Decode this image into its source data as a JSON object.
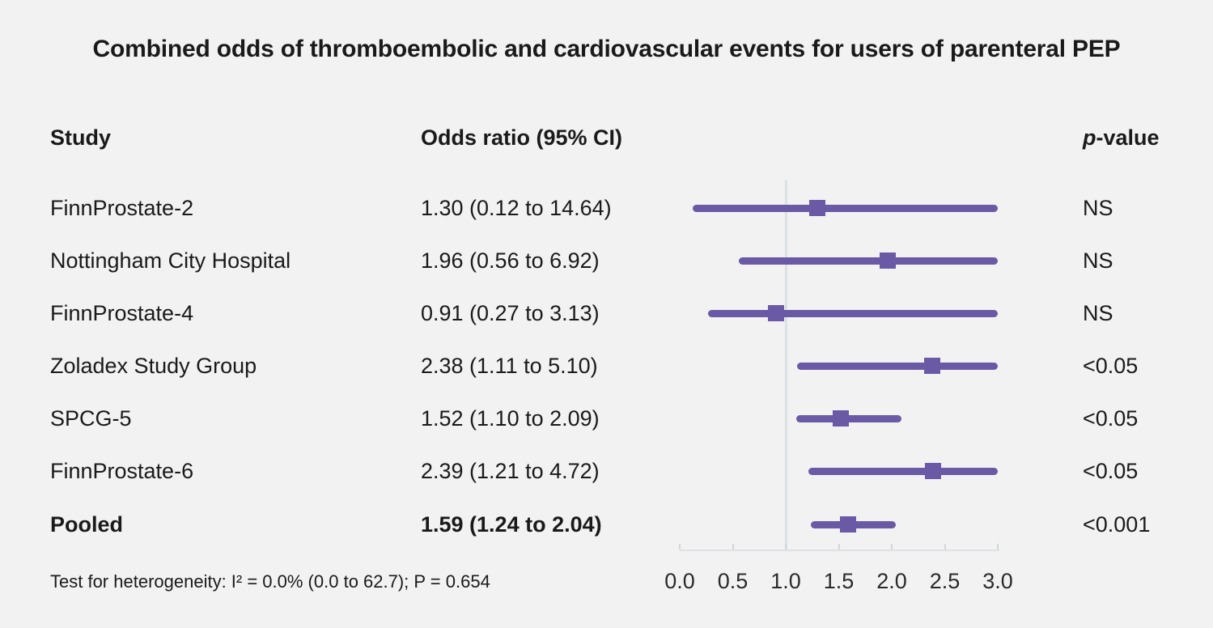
{
  "title": "Combined odds of thromboembolic and cardiovascular events for users of parenteral PEP",
  "columns": {
    "study": "Study",
    "odds_ratio": "Odds ratio (95% CI)",
    "p_value_italic": "p",
    "p_value_rest": "-value"
  },
  "footer": "Test for heterogeneity: I² = 0.0% (0.0 to 62.7); P = 0.654",
  "colors": {
    "background": "#f2f2f2",
    "accent_purple": "#6a59a5",
    "reference_line": "#dde1e5",
    "axis_line": "#dde1e5",
    "tick": "#d2d6da",
    "text": "#1a1a1a"
  },
  "chart_data": {
    "type": "forest",
    "title": "Combined odds of thromboembolic and cardiovascular events for users of parenteral PEP",
    "x_axis": {
      "xlim": [
        0.0,
        3.0
      ],
      "ticks": [
        0.0,
        0.5,
        1.0,
        1.5,
        2.0,
        2.5,
        3.0
      ],
      "tick_labels": [
        "0.0",
        "0.5",
        "1.0",
        "1.5",
        "2.0",
        "2.5",
        "3.0"
      ],
      "reference_line": 1.0
    },
    "rows": [
      {
        "study": "FinnProstate-2",
        "or": 1.3,
        "ci_low": 0.12,
        "ci_high": 14.64,
        "or_label": "1.30 (0.12 to 14.64)",
        "p": "NS",
        "bold": false
      },
      {
        "study": "Nottingham City Hospital",
        "or": 1.96,
        "ci_low": 0.56,
        "ci_high": 6.92,
        "or_label": "1.96 (0.56 to 6.92)",
        "p": "NS",
        "bold": false
      },
      {
        "study": "FinnProstate-4",
        "or": 0.91,
        "ci_low": 0.27,
        "ci_high": 3.13,
        "or_label": "0.91 (0.27 to 3.13)",
        "p": "NS",
        "bold": false
      },
      {
        "study": "Zoladex Study Group",
        "or": 2.38,
        "ci_low": 1.11,
        "ci_high": 5.1,
        "or_label": "2.38 (1.11 to 5.10)",
        "p": "<0.05",
        "bold": false
      },
      {
        "study": "SPCG-5",
        "or": 1.52,
        "ci_low": 1.1,
        "ci_high": 2.09,
        "or_label": "1.52 (1.10 to 2.09)",
        "p": "<0.05",
        "bold": false
      },
      {
        "study": "FinnProstate-6",
        "or": 2.39,
        "ci_low": 1.21,
        "ci_high": 4.72,
        "or_label": "2.39 (1.21 to 4.72)",
        "p": "<0.05",
        "bold": false
      },
      {
        "study": "Pooled",
        "or": 1.59,
        "ci_low": 1.24,
        "ci_high": 2.04,
        "or_label": "1.59 (1.24 to 2.04)",
        "p": "<0.001",
        "bold": true
      }
    ],
    "heterogeneity": "Test for heterogeneity: I² = 0.0% (0.0 to 62.7); P = 0.654"
  }
}
